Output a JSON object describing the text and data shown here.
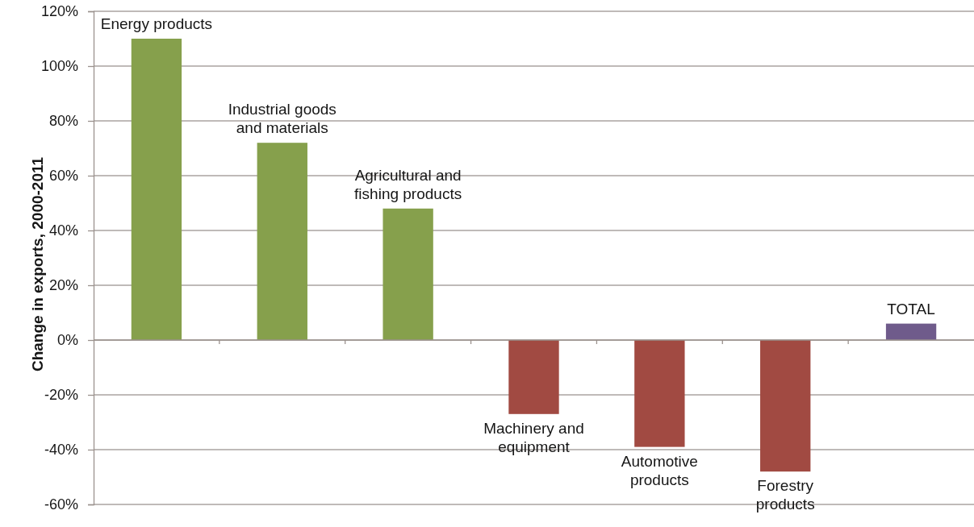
{
  "chart_data": {
    "type": "bar",
    "ylabel": "Change in exports, 2000-2011",
    "categories": [
      "Energy products",
      "Industrial goods and materials",
      "Agricultural and fishing products",
      "Machinery and equipment",
      "Automotive products",
      "Forestry products",
      "TOTAL"
    ],
    "values": [
      110,
      72,
      48,
      -27,
      -39,
      -48,
      6
    ],
    "colors": [
      "#86a04c",
      "#86a04c",
      "#86a04c",
      "#a14a42",
      "#a14a42",
      "#a14a42",
      "#6f5b8b"
    ],
    "ylim": [
      -60,
      120
    ],
    "yticks": [
      {
        "value": -60,
        "label": "-60%"
      },
      {
        "value": -40,
        "label": "-40%"
      },
      {
        "value": -20,
        "label": "-20%"
      },
      {
        "value": 0,
        "label": "0%"
      },
      {
        "value": 20,
        "label": "20%"
      },
      {
        "value": 40,
        "label": "40%"
      },
      {
        "value": 60,
        "label": "60%"
      },
      {
        "value": 80,
        "label": "80%"
      },
      {
        "value": 100,
        "label": "100%"
      },
      {
        "value": 120,
        "label": "120%"
      }
    ],
    "grid": "y"
  }
}
